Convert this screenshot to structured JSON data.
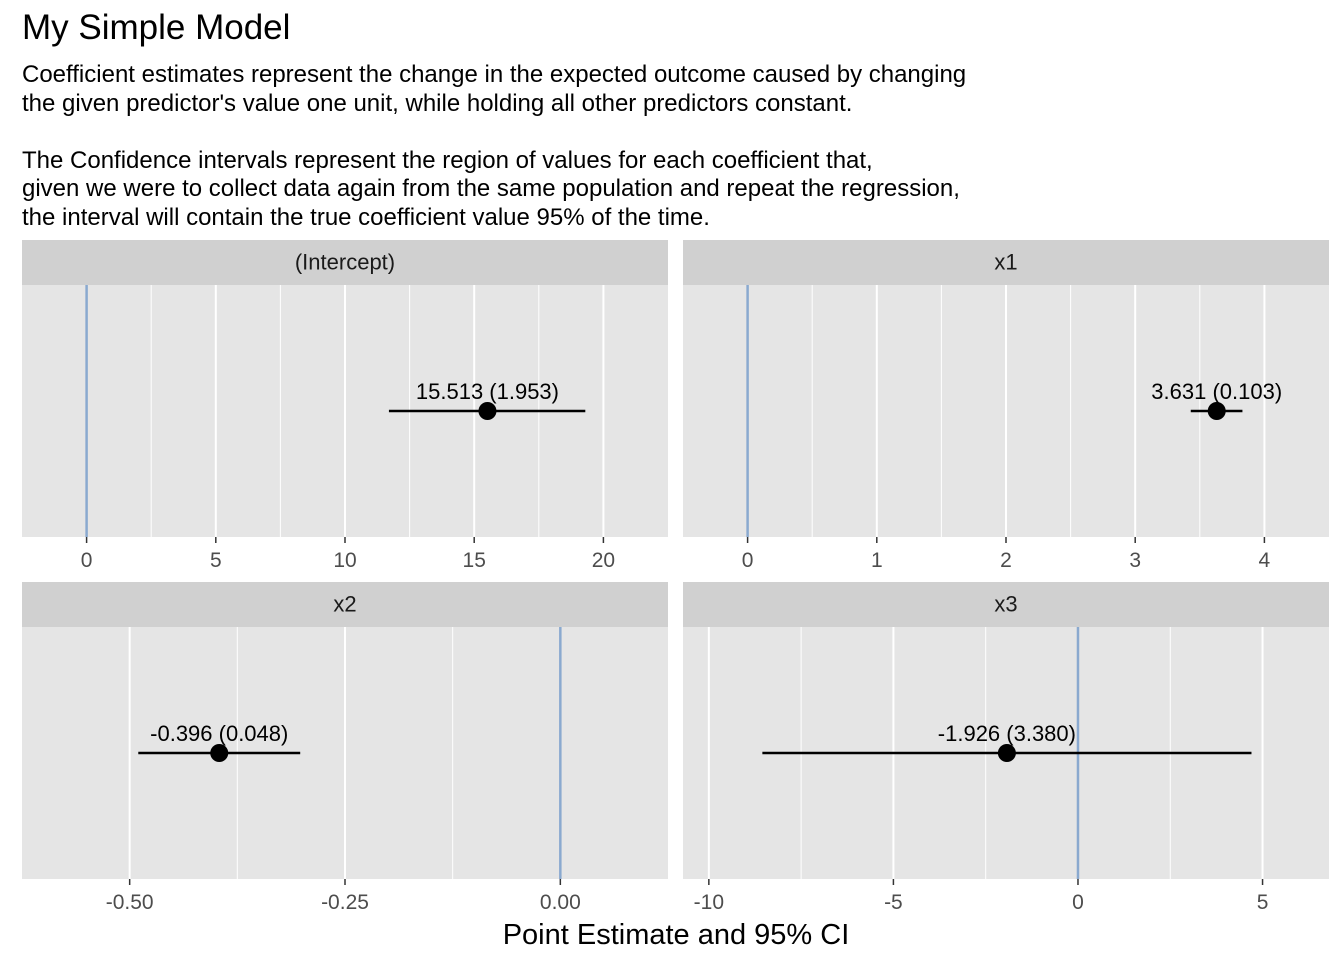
{
  "title": "My Simple Model",
  "subtitle_lines": [
    "Coefficient estimates represent the change in the expected outcome caused by changing",
    "the given predictor's value one unit, while holding all other predictors constant.",
    "",
    "The Confidence intervals represent the region of values for each coefficient that,",
    "given we were to collect data again from the same population and repeat the regression,",
    "the interval will contain the true coefficient value 95% of the time."
  ],
  "x_axis_label": "Point Estimate and 95% CI",
  "colors": {
    "panel_bg": "#e5e5e5",
    "strip_bg": "#d0d0d0",
    "grid": "#ffffff",
    "zero_line": "#8aa9cf",
    "point": "#000000"
  },
  "chart_data": {
    "type": "coefficient-plot",
    "grid": true,
    "facets": [
      {
        "label": "(Intercept)",
        "estimate": 15.513,
        "ci_low": 11.7,
        "ci_high": 19.3,
        "point_label": "15.513 (1.953)",
        "xlim": [
          -2.5,
          22.5
        ],
        "ticks": [
          0,
          5,
          10,
          15,
          20
        ],
        "tick_labels": [
          "0",
          "5",
          "10",
          "15",
          "20"
        ]
      },
      {
        "label": "x1",
        "estimate": 3.631,
        "ci_low": 3.43,
        "ci_high": 3.83,
        "point_label": "3.631 (0.103)",
        "xlim": [
          -0.5,
          4.5
        ],
        "ticks": [
          0,
          1,
          2,
          3,
          4
        ],
        "tick_labels": [
          "0",
          "1",
          "2",
          "3",
          "4"
        ]
      },
      {
        "label": "x2",
        "estimate": -0.396,
        "ci_low": -0.49,
        "ci_high": -0.302,
        "point_label": "-0.396 (0.048)",
        "xlim": [
          -0.625,
          0.125
        ],
        "ticks": [
          -0.5,
          -0.25,
          0,
          0.25
        ],
        "tick_labels": [
          "-0.50",
          "-0.25",
          "0.00",
          ""
        ]
      },
      {
        "label": "x3",
        "estimate": -1.926,
        "ci_low": -8.55,
        "ci_high": 4.7,
        "point_label": "-1.926 (3.380)",
        "xlim": [
          -10.7,
          6.8
        ],
        "ticks": [
          -10,
          -5,
          0,
          5
        ],
        "tick_labels": [
          "-10",
          "-5",
          "0",
          "5"
        ]
      }
    ]
  }
}
